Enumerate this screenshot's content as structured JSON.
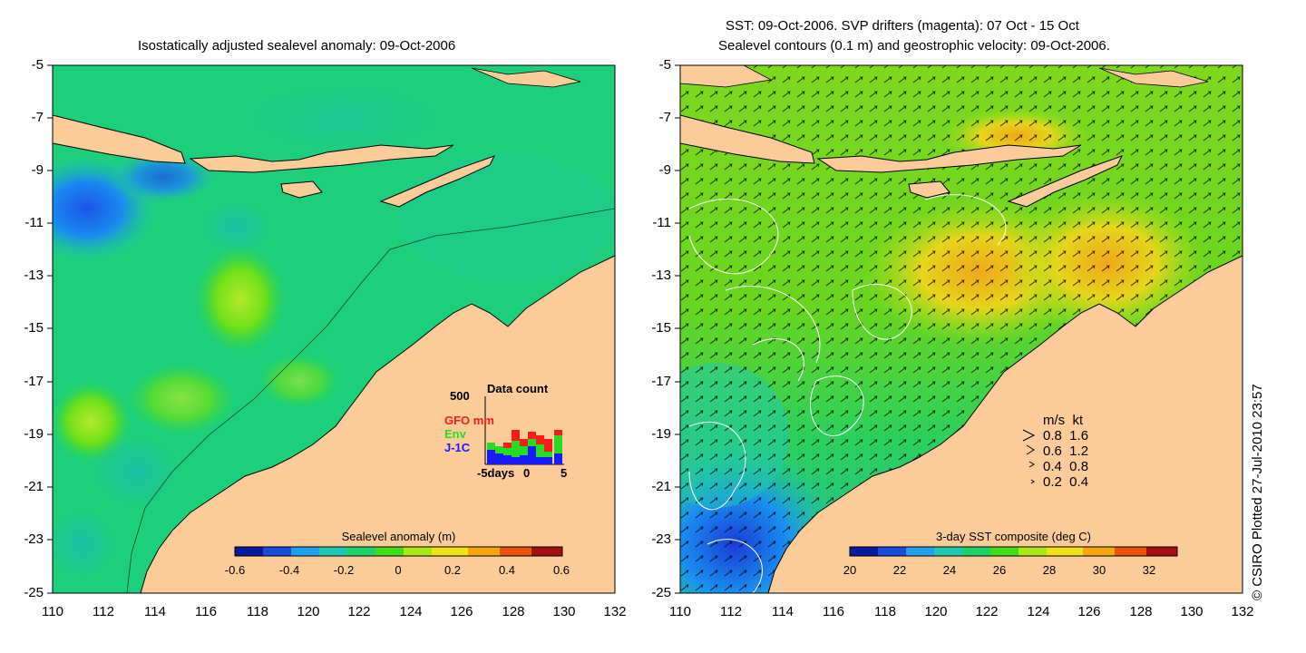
{
  "left_panel": {
    "title": "Isostatically adjusted sealevel anomaly: 09-Oct-2006",
    "colorbar": {
      "label": "Sealevel anomaly (m)",
      "ticks": [
        "-0.6",
        "-0.4",
        "-0.2",
        "0",
        "0.2",
        "0.4",
        "0.6"
      ],
      "colors": [
        "#0a1a9a",
        "#1a4be0",
        "#1fa0f0",
        "#20c8b0",
        "#1ed26a",
        "#3fdd1a",
        "#aae61a",
        "#f0e21a",
        "#f5a612",
        "#e8540f",
        "#a31010"
      ]
    },
    "inset": {
      "title": "Data count",
      "ymax": "500",
      "legend": [
        {
          "label": "GFO mm",
          "color": "#ff1a1a"
        },
        {
          "label": "Env",
          "color": "#22dd22"
        },
        {
          "label": "J-1C",
          "color": "#1a1aff"
        }
      ],
      "xticks": [
        "-5days",
        "0",
        "5"
      ]
    }
  },
  "right_panel": {
    "title_line1": "SST: 09-Oct-2006. SVP drifters (magenta): 07 Oct - 15 Oct",
    "title_line2": "Sealevel contours (0.1 m) and geostrophic velocity: 09-Oct-2006.",
    "colorbar": {
      "label": "3-day SST composite (deg C)",
      "ticks": [
        "20",
        "22",
        "24",
        "26",
        "28",
        "30",
        "32"
      ],
      "colors": [
        "#0a1a9a",
        "#1a4be0",
        "#1fa0f0",
        "#20c8b0",
        "#1ed26a",
        "#3fdd1a",
        "#aae61a",
        "#f0e21a",
        "#f5a612",
        "#e8540f",
        "#a31010"
      ]
    },
    "velocity_key": {
      "header": "m/s  kt",
      "rows": [
        "0.8  1.6",
        "0.6  1.2",
        "0.4  0.8",
        "0.2  0.4"
      ]
    }
  },
  "axes": {
    "yticks": [
      "-5",
      "-7",
      "-9",
      "-11",
      "-13",
      "-15",
      "-17",
      "-19",
      "-21",
      "-23",
      "-25"
    ],
    "xticks": [
      "110",
      "112",
      "114",
      "116",
      "118",
      "120",
      "122",
      "124",
      "126",
      "128",
      "130",
      "132"
    ]
  },
  "credit": "© CSIRO Plotted 27-Jul-2010 23:57",
  "colors": {
    "land": "#fbcb9a",
    "sea_mid": "#1fce6e"
  }
}
